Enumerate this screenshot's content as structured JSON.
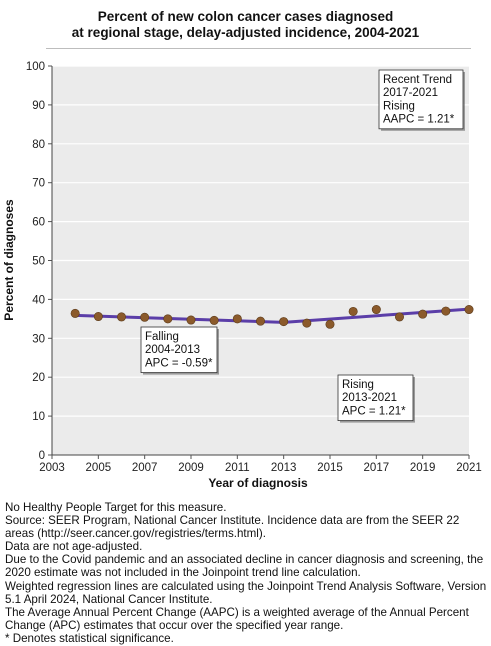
{
  "chart_data": {
    "type": "line",
    "title": [
      "Percent of new colon cancer cases diagnosed",
      "at regional stage, delay-adjusted incidence, 2004-2021"
    ],
    "xlabel": "Year of diagnosis",
    "ylabel": "Percent of diagnoses",
    "xlim": [
      2003,
      2021
    ],
    "ylim": [
      0,
      100
    ],
    "x_ticks": [
      2003,
      2005,
      2007,
      2009,
      2011,
      2013,
      2015,
      2017,
      2019,
      2021
    ],
    "y_ticks": [
      0,
      10,
      20,
      30,
      40,
      50,
      60,
      70,
      80,
      90,
      100
    ],
    "grid": true,
    "observed": {
      "x": [
        2004,
        2005,
        2006,
        2007,
        2008,
        2009,
        2010,
        2011,
        2012,
        2013,
        2014,
        2015,
        2016,
        2017,
        2018,
        2019,
        2020,
        2021
      ],
      "y": [
        36.4,
        35.6,
        35.5,
        35.4,
        35.0,
        34.7,
        34.6,
        35.0,
        34.4,
        34.3,
        33.9,
        33.6,
        36.9,
        37.4,
        35.5,
        36.2,
        37.0,
        37.4
      ]
    },
    "trend": {
      "x": [
        2004,
        2013,
        2021
      ],
      "y": [
        35.9,
        34.1,
        37.5
      ]
    },
    "colors": {
      "marker": "#8b5a2b",
      "line": "#5b3ea8",
      "grid": "#ffffff",
      "plot_bg": "#ebebeb"
    },
    "annotations": [
      {
        "id": "recent",
        "lines": [
          "Recent Trend",
          "2017-2021",
          "Rising",
          "AAPC = 1.21*"
        ]
      },
      {
        "id": "seg1",
        "lines": [
          "Falling",
          "2004-2013",
          "APC = -0.59*"
        ]
      },
      {
        "id": "seg2",
        "lines": [
          "Rising",
          "2013-2021",
          "APC = 1.21*"
        ]
      }
    ]
  },
  "notes": [
    "No Healthy People Target for this measure.",
    "Source: SEER Program, National Cancer Institute. Incidence data are from the SEER 22 areas (http://seer.cancer.gov/registries/terms.html).",
    "Data are not age-adjusted.",
    "Due to the Covid pandemic and an associated decline in cancer diagnosis and screening, the 2020 estimate was not included in the Joinpoint trend line calculation.",
    "Weighted regression lines are calculated using the Joinpoint Trend Analysis Software, Version 5.1 April 2024, National Cancer Institute.",
    "The Average Annual Percent Change (AAPC) is a weighted average of the Annual Percent Change (APC) estimates that occur over the specified year range.",
    "* Denotes statistical significance."
  ]
}
